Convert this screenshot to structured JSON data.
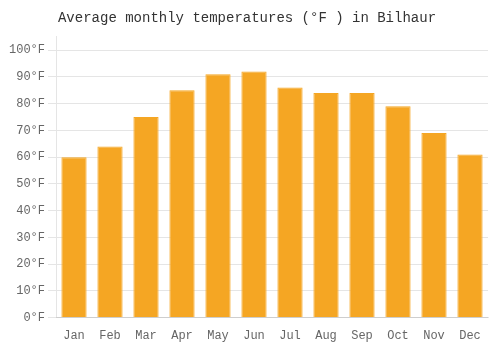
{
  "chart_data": {
    "type": "bar",
    "title": "Average monthly temperatures (°F ) in Bilhaur",
    "categories": [
      "Jan",
      "Feb",
      "Mar",
      "Apr",
      "May",
      "Jun",
      "Jul",
      "Aug",
      "Sep",
      "Oct",
      "Nov",
      "Dec"
    ],
    "values": [
      60,
      64,
      75,
      85,
      91,
      92,
      86,
      84,
      84,
      79,
      69,
      61
    ],
    "color": "#F5A623",
    "ylim": [
      0,
      105
    ],
    "yticks": [
      {
        "value": 0,
        "label": "0°F"
      },
      {
        "value": 10,
        "label": "10°F"
      },
      {
        "value": 20,
        "label": "20°F"
      },
      {
        "value": 30,
        "label": "30°F"
      },
      {
        "value": 40,
        "label": "40°F"
      },
      {
        "value": 50,
        "label": "50°F"
      },
      {
        "value": 60,
        "label": "60°F"
      },
      {
        "value": 70,
        "label": "70°F"
      },
      {
        "value": 80,
        "label": "80°F"
      },
      {
        "value": 90,
        "label": "90°F"
      },
      {
        "value": 100,
        "label": "100°F"
      }
    ],
    "grid": true
  }
}
